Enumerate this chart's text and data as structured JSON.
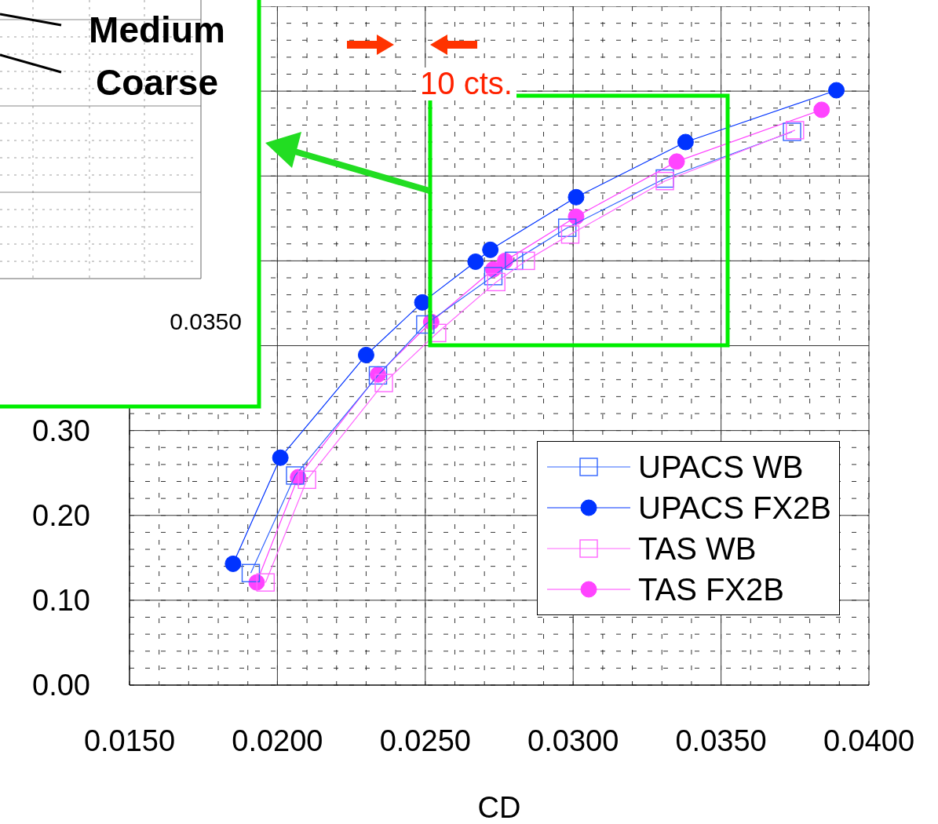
{
  "chart_data": {
    "type": "line",
    "xlabel": "CD",
    "xlim": [
      0.015,
      0.04
    ],
    "xticks": [
      {
        "value": 0.015,
        "label": "0.0150"
      },
      {
        "value": 0.02,
        "label": "0.0200"
      },
      {
        "value": 0.025,
        "label": "0.0250"
      },
      {
        "value": 0.03,
        "label": "0.0300"
      },
      {
        "value": 0.035,
        "label": "0.0350"
      },
      {
        "value": 0.04,
        "label": "0.0400"
      }
    ],
    "ylim": [
      0,
      0.8
    ],
    "yticks": [
      {
        "value": 0,
        "label": "0.00"
      },
      {
        "value": 0.1,
        "label": "0.10"
      },
      {
        "value": 0.2,
        "label": "0.20"
      },
      {
        "value": 0.3,
        "label": "0.30"
      },
      {
        "value": 0.4,
        "label": null
      },
      {
        "value": 0.5,
        "label": null
      },
      {
        "value": 0.6,
        "label": null
      },
      {
        "value": 0.7,
        "label": null
      },
      {
        "value": 0.8,
        "label": null
      }
    ],
    "grid": true,
    "legend": "bottom right",
    "line_style": "solid",
    "series": [
      {
        "name": "UPACS WB",
        "color": "#3366ff",
        "marker": "square",
        "x": [
          0.0191,
          0.0206,
          0.0234,
          0.025,
          0.0273,
          0.028,
          0.0298,
          0.0331,
          0.0374
        ],
        "values": [
          0.132,
          0.247,
          0.365,
          0.425,
          0.482,
          0.5,
          0.539,
          0.597,
          0.652
        ]
      },
      {
        "name": "UPACS FX2B",
        "color": "#0033ff",
        "marker": "circle",
        "x": [
          0.0185,
          0.0201,
          0.023,
          0.0249,
          0.0267,
          0.0272,
          0.0301,
          0.0338,
          0.0389
        ],
        "values": [
          0.143,
          0.268,
          0.389,
          0.451,
          0.499,
          0.513,
          0.575,
          0.64,
          0.701
        ]
      },
      {
        "name": "TAS WB",
        "color": "#ff66ff",
        "marker": "square",
        "x": [
          0.0196,
          0.021,
          0.0236,
          0.0254,
          0.0274,
          0.0284,
          0.0299,
          0.0331,
          0.0375
        ],
        "values": [
          0.121,
          0.242,
          0.356,
          0.415,
          0.475,
          0.5,
          0.531,
          0.594,
          0.654
        ]
      },
      {
        "name": "TAS FX2B",
        "color": "#ff44ff",
        "marker": "circle",
        "x": [
          0.0193,
          0.0207,
          0.0234,
          0.0252,
          0.0273,
          0.0277,
          0.0301,
          0.0335,
          0.0384
        ],
        "values": [
          0.121,
          0.245,
          0.366,
          0.428,
          0.49,
          0.5,
          0.552,
          0.617,
          0.678
        ]
      }
    ],
    "annotations": [
      "Medium",
      "Coarse",
      "0.0350",
      "10 cts."
    ]
  }
}
